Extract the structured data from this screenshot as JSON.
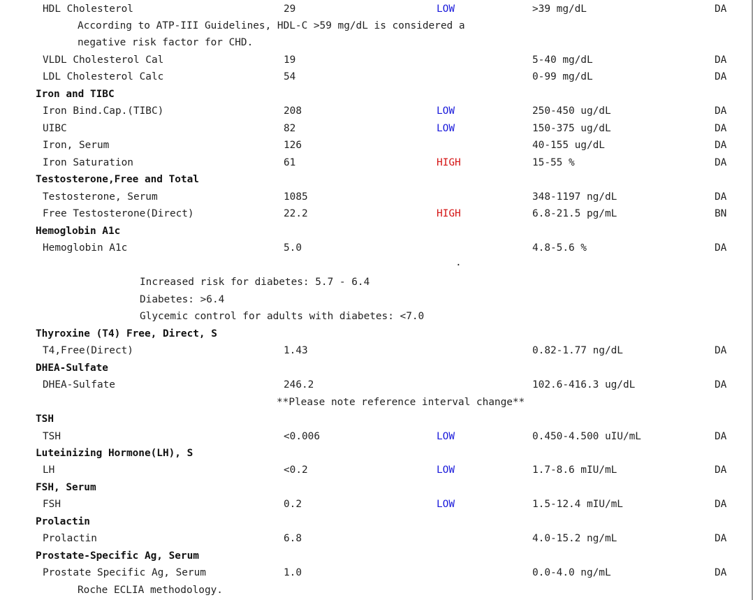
{
  "rows": [
    {
      "kind": "result",
      "name": "HDL Cholesterol",
      "result": "29",
      "flag": "LOW",
      "range": ">39 mg/dL",
      "lab": "DA"
    },
    {
      "kind": "comment",
      "indent": 1,
      "text": "According to ATP-III Guidelines, HDL-C >59 mg/dL is considered a"
    },
    {
      "kind": "comment",
      "indent": 1,
      "text": "negative risk factor for CHD."
    },
    {
      "kind": "result",
      "name": "VLDL Cholesterol Cal",
      "result": "19",
      "flag": "",
      "range": "5-40 mg/dL",
      "lab": "DA"
    },
    {
      "kind": "result",
      "name": "LDL Cholesterol Calc",
      "result": "54",
      "flag": "",
      "range": "0-99 mg/dL",
      "lab": "DA"
    },
    {
      "kind": "section",
      "text": "Iron and TIBC"
    },
    {
      "kind": "result",
      "name": "Iron Bind.Cap.(TIBC)",
      "result": "208",
      "flag": "LOW",
      "range": "250-450 ug/dL",
      "lab": "DA"
    },
    {
      "kind": "result",
      "name": "UIBC",
      "result": "82",
      "flag": "LOW",
      "range": "150-375 ug/dL",
      "lab": "DA"
    },
    {
      "kind": "result",
      "name": "Iron, Serum",
      "result": "126",
      "flag": "",
      "range": "40-155 ug/dL",
      "lab": "DA"
    },
    {
      "kind": "result",
      "name": "Iron Saturation",
      "result": "61",
      "flag": "HIGH",
      "range": "15-55 %",
      "lab": "DA"
    },
    {
      "kind": "section",
      "text": "Testosterone,Free and Total"
    },
    {
      "kind": "result",
      "name": "Testosterone, Serum",
      "result": "1085",
      "flag": "",
      "range": "348-1197 ng/dL",
      "lab": "DA"
    },
    {
      "kind": "result",
      "name": "Free Testosterone(Direct)",
      "result": "22.2",
      "flag": "HIGH",
      "range": "6.8-21.5 pg/mL",
      "lab": "BN"
    },
    {
      "kind": "section",
      "text": "Hemoglobin A1c"
    },
    {
      "kind": "result",
      "name": "Hemoglobin A1c",
      "result": "5.0",
      "flag": "",
      "range": "4.8-5.6 %",
      "lab": "DA"
    },
    {
      "kind": "dot",
      "text": "."
    },
    {
      "kind": "comment",
      "indent": 2,
      "text": "Increased risk for diabetes: 5.7 - 6.4"
    },
    {
      "kind": "comment",
      "indent": 2,
      "text": "Diabetes: >6.4"
    },
    {
      "kind": "comment",
      "indent": 2,
      "text": "Glycemic control for adults with diabetes: <7.0"
    },
    {
      "kind": "section",
      "text": "Thyroxine (T4) Free, Direct, S"
    },
    {
      "kind": "result",
      "name": "T4,Free(Direct)",
      "result": "1.43",
      "flag": "",
      "range": "0.82-1.77 ng/dL",
      "lab": "DA"
    },
    {
      "kind": "section",
      "text": "DHEA-Sulfate"
    },
    {
      "kind": "result",
      "name": "DHEA-Sulfate",
      "result": "246.2",
      "flag": "",
      "range": "102.6-416.3 ug/dL",
      "lab": "DA"
    },
    {
      "kind": "comment",
      "indent": 3,
      "text": "**Please note reference interval change**"
    },
    {
      "kind": "section",
      "text": "TSH"
    },
    {
      "kind": "result",
      "name": "TSH",
      "result": "<0.006",
      "flag": "LOW",
      "range": "0.450-4.500 uIU/mL",
      "lab": "DA"
    },
    {
      "kind": "section",
      "text": "Luteinizing Hormone(LH), S"
    },
    {
      "kind": "result",
      "name": "LH",
      "result": "<0.2",
      "flag": "LOW",
      "range": "1.7-8.6 mIU/mL",
      "lab": "DA"
    },
    {
      "kind": "section",
      "text": "FSH, Serum"
    },
    {
      "kind": "result",
      "name": "FSH",
      "result": "0.2",
      "flag": "LOW",
      "range": "1.5-12.4 mIU/mL",
      "lab": "DA"
    },
    {
      "kind": "section",
      "text": "Prolactin"
    },
    {
      "kind": "result",
      "name": "Prolactin",
      "result": "6.8",
      "flag": "",
      "range": "4.0-15.2 ng/mL",
      "lab": "DA"
    },
    {
      "kind": "section",
      "text": "Prostate-Specific Ag, Serum"
    },
    {
      "kind": "result",
      "name": "Prostate Specific Ag, Serum",
      "result": "1.0",
      "flag": "",
      "range": "0.0-4.0 ng/mL",
      "lab": "DA"
    },
    {
      "kind": "comment",
      "indent": 1,
      "text": "Roche ECLIA methodology."
    }
  ],
  "colors": {
    "low_flag": "#1a1adb",
    "high_flag": "#d41414",
    "text": "#222222"
  }
}
